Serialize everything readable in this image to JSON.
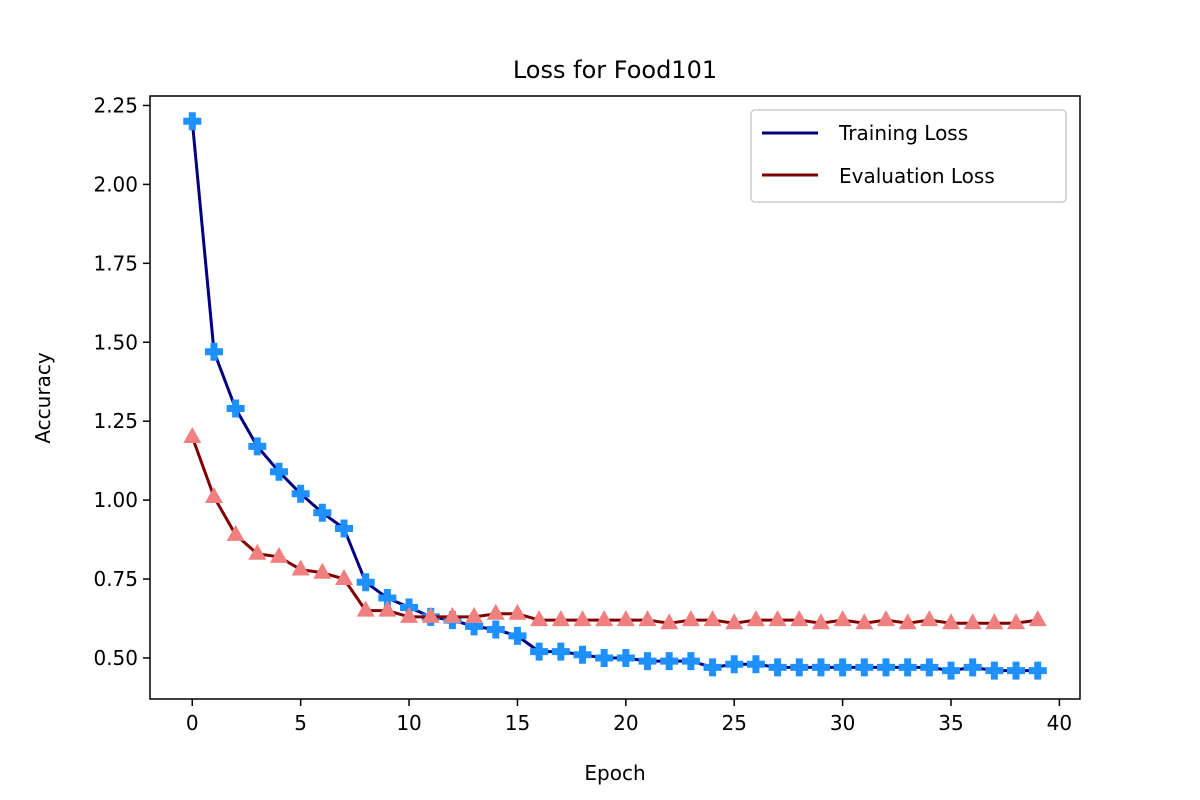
{
  "chart_data": {
    "type": "line",
    "title": "Loss for Food101",
    "xlabel": "Epoch",
    "ylabel": "Accuracy",
    "xlim": [
      -1.95,
      40.95
    ],
    "ylim": [
      0.37,
      2.28
    ],
    "xticks": [
      0,
      5,
      10,
      15,
      20,
      25,
      30,
      35,
      40
    ],
    "xtick_labels": [
      "0",
      "5",
      "10",
      "15",
      "20",
      "25",
      "30",
      "35",
      "40"
    ],
    "yticks": [
      0.5,
      0.75,
      1.0,
      1.25,
      1.5,
      1.75,
      2.0,
      2.25
    ],
    "ytick_labels": [
      "0.50",
      "0.75",
      "1.00",
      "1.25",
      "1.50",
      "1.75",
      "2.00",
      "2.25"
    ],
    "grid": false,
    "legend_position": "top-right",
    "x": [
      0,
      1,
      2,
      3,
      4,
      5,
      6,
      7,
      8,
      9,
      10,
      11,
      12,
      13,
      14,
      15,
      16,
      17,
      18,
      19,
      20,
      21,
      22,
      23,
      24,
      25,
      26,
      27,
      28,
      29,
      30,
      31,
      32,
      33,
      34,
      35,
      36,
      37,
      38,
      39
    ],
    "series": [
      {
        "name": "Training Loss",
        "line_color": "#000080",
        "marker": "plus",
        "marker_color": "#1e90ff",
        "values": [
          2.2,
          1.47,
          1.29,
          1.17,
          1.09,
          1.02,
          0.96,
          0.91,
          0.74,
          0.69,
          0.66,
          0.63,
          0.62,
          0.6,
          0.59,
          0.57,
          0.52,
          0.52,
          0.51,
          0.5,
          0.5,
          0.49,
          0.49,
          0.49,
          0.47,
          0.48,
          0.48,
          0.47,
          0.47,
          0.47,
          0.47,
          0.47,
          0.47,
          0.47,
          0.47,
          0.46,
          0.47,
          0.46,
          0.46,
          0.46
        ]
      },
      {
        "name": "Evaluation Loss",
        "line_color": "#800000",
        "marker": "triangle",
        "marker_color": "#f08080",
        "values": [
          1.2,
          1.01,
          0.89,
          0.83,
          0.82,
          0.78,
          0.77,
          0.75,
          0.65,
          0.65,
          0.63,
          0.63,
          0.63,
          0.63,
          0.64,
          0.64,
          0.62,
          0.62,
          0.62,
          0.62,
          0.62,
          0.62,
          0.61,
          0.62,
          0.62,
          0.61,
          0.62,
          0.62,
          0.62,
          0.61,
          0.62,
          0.61,
          0.62,
          0.61,
          0.62,
          0.61,
          0.61,
          0.61,
          0.61,
          0.62
        ]
      }
    ]
  }
}
